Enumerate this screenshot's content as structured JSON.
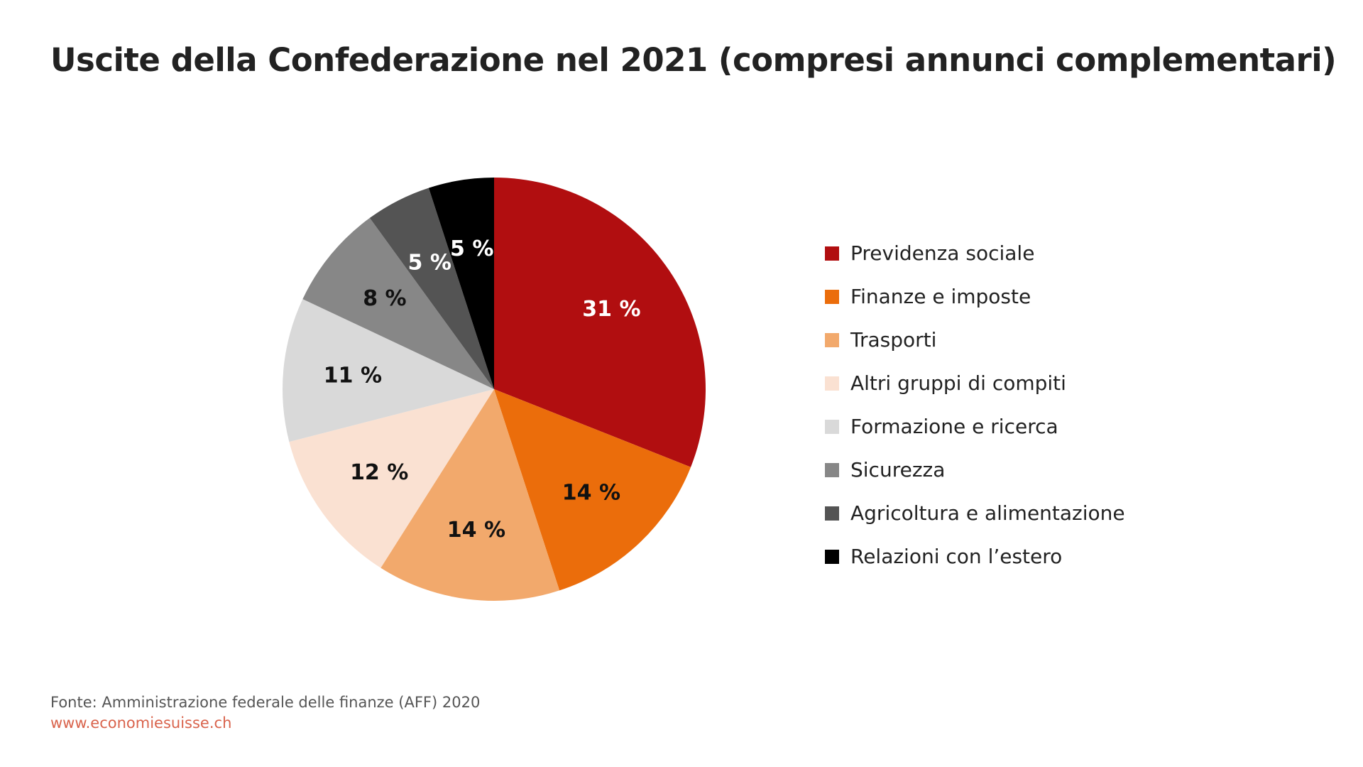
{
  "chart_data": {
    "type": "pie",
    "title": "Uscite della Confederazione nel 2021 (compresi annunci complementari)",
    "unit": "%",
    "legend_position": "right",
    "slices": [
      {
        "label": "Previdenza sociale",
        "value": 31,
        "display": "31 %",
        "color": "#b10e10",
        "label_color": "#ffffff"
      },
      {
        "label": "Finanze e imposte",
        "value": 14,
        "display": "14 %",
        "color": "#eb6d0b",
        "label_color": "#111111"
      },
      {
        "label": "Trasporti",
        "value": 14,
        "display": "14 %",
        "color": "#f2a96c",
        "label_color": "#111111"
      },
      {
        "label": "Altri gruppi di compiti",
        "value": 12,
        "display": "12 %",
        "color": "#fae1d2",
        "label_color": "#111111"
      },
      {
        "label": "Formazione e ricerca",
        "value": 11,
        "display": "11 %",
        "color": "#d9d9d9",
        "label_color": "#111111"
      },
      {
        "label": "Sicurezza",
        "value": 8,
        "display": "8 %",
        "color": "#878787",
        "label_color": "#111111"
      },
      {
        "label": "Agricoltura e alimentazione",
        "value": 5,
        "display": "5 %",
        "color": "#545454",
        "label_color": "#ffffff"
      },
      {
        "label": "Relazioni con l’estero",
        "value": 5,
        "display": "5 %",
        "color": "#000000",
        "label_color": "#ffffff"
      }
    ]
  },
  "source": {
    "line1": "Fonte: Amministrazione federale delle finanze (AFF) 2020",
    "line2": "www.economiesuisse.ch"
  }
}
